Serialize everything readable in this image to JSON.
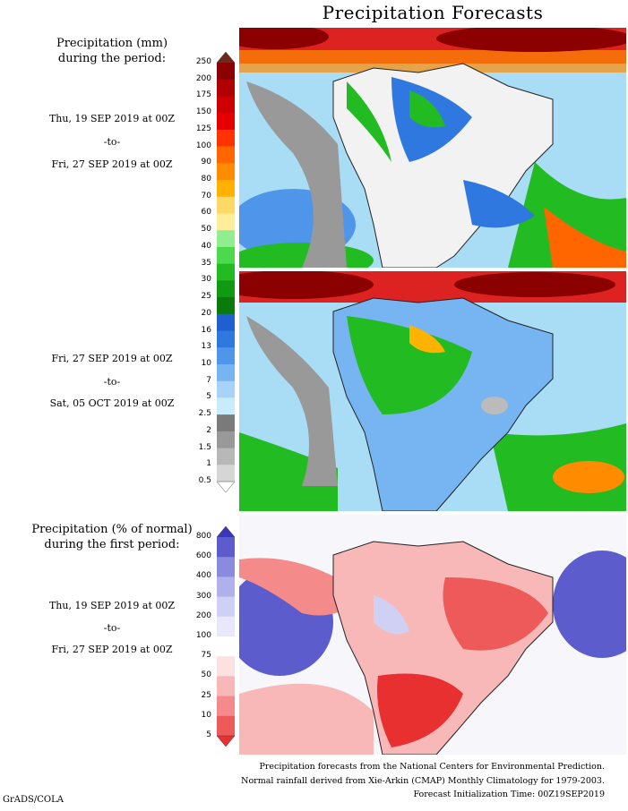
{
  "title": "Precipitation Forecasts",
  "section1": {
    "heading_line1": "Precipitation (mm)",
    "heading_line2": "during the period:",
    "period1": {
      "from": "Thu, 19 SEP 2019 at 00Z",
      "to": "-to-",
      "until": "Fri, 27 SEP 2019 at 00Z"
    },
    "period2": {
      "from": "Fri, 27 SEP 2019 at 00Z",
      "to": "-to-",
      "until": "Sat, 05 OCT 2019 at 00Z"
    }
  },
  "section2": {
    "heading_line1": "Precipitation (% of normal)",
    "heading_line2": "during the first period:",
    "period": {
      "from": "Thu, 19 SEP 2019 at 00Z",
      "to": "-to-",
      "until": "Fri, 27 SEP 2019 at 00Z"
    }
  },
  "precip_scale": {
    "labels": [
      "250",
      "200",
      "175",
      "150",
      "125",
      "100",
      "90",
      "80",
      "70",
      "60",
      "50",
      "40",
      "35",
      "30",
      "25",
      "20",
      "16",
      "13",
      "10",
      "7",
      "5",
      "2.5",
      "2",
      "1.5",
      "1",
      "0.5"
    ],
    "colors": [
      "#6b2a1c",
      "#8b0000",
      "#b00000",
      "#cc0000",
      "#e60000",
      "#ff3300",
      "#ff6600",
      "#ff8c00",
      "#ffb300",
      "#ffd966",
      "#ffee99",
      "#90ee90",
      "#4cd94c",
      "#22bb22",
      "#119911",
      "#0a7a0a",
      "#1e5fd1",
      "#2f78e0",
      "#4f96ea",
      "#77b4f2",
      "#a6d3f7",
      "#c9ecfb",
      "#7a7a7a",
      "#999999",
      "#b8b8b8",
      "#d6d6d6",
      "#ffffff"
    ]
  },
  "pct_scale": {
    "labels": [
      "800",
      "600",
      "400",
      "300",
      "200",
      "100",
      "75",
      "50",
      "25",
      "10",
      "5"
    ],
    "colors": [
      "#3838b8",
      "#5c5ccc",
      "#8a8ade",
      "#b0b0ea",
      "#d0d0f4",
      "#e8e8fa",
      "#ffffff",
      "#fde0e0",
      "#f9b8b8",
      "#f48a8a",
      "#ee5a5a",
      "#e83030"
    ]
  },
  "footer": {
    "line1": "Precipitation forecasts from the National Centers for Environmental Prediction.",
    "line2": "Normal rainfall derived from Xie-Arkin (CMAP) Monthly Climatology for 1979-2003.",
    "line3": "Forecast Initialization Time: 00Z19SEP2019"
  },
  "credit": "GrADS/COLA",
  "chart_data": [
    {
      "type": "heatmap",
      "title": "Precipitation (mm)",
      "period": "Thu, 19 SEP 2019 at 00Z -to- Fri, 27 SEP 2019 at 00Z",
      "region": "South America"
    },
    {
      "type": "heatmap",
      "title": "Precipitation (mm)",
      "period": "Fri, 27 SEP 2019 at 00Z -to- Sat, 05 OCT 2019 at 00Z",
      "region": "South America"
    },
    {
      "type": "heatmap",
      "title": "Precipitation (% of normal)",
      "period": "Thu, 19 SEP 2019 at 00Z -to- Fri, 27 SEP 2019 at 00Z",
      "region": "South America"
    }
  ]
}
